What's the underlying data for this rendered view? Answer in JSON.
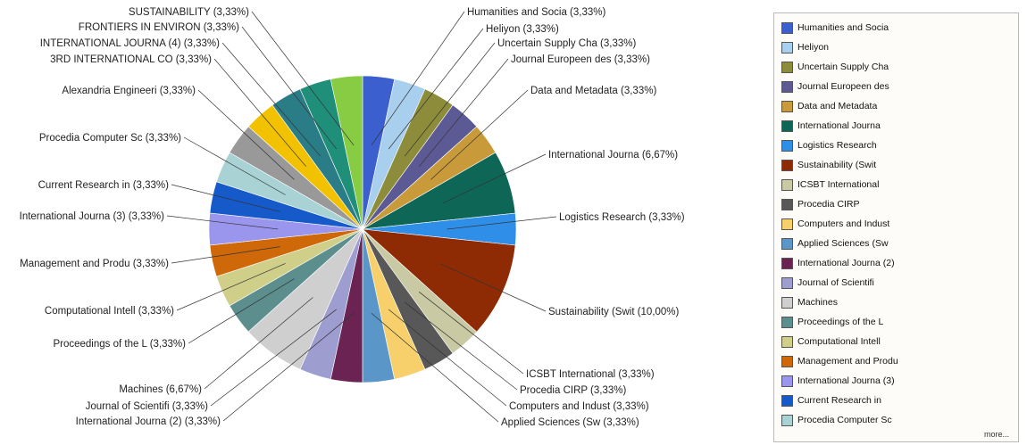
{
  "chart_data": {
    "type": "pie",
    "slices": [
      {
        "name": "Humanities and Socia",
        "value": 3.33,
        "label": "Humanities and Socia (3,33%)",
        "color": "#3b5fcf"
      },
      {
        "name": "Heliyon",
        "value": 3.33,
        "label": "Heliyon (3,33%)",
        "color": "#a9cfef"
      },
      {
        "name": "Uncertain Supply Cha",
        "value": 3.33,
        "label": "Uncertain Supply Cha (3,33%)",
        "color": "#8c8c3a"
      },
      {
        "name": "Journal Europeen des",
        "value": 3.33,
        "label": "Journal Europeen des (3,33%)",
        "color": "#5b5a95"
      },
      {
        "name": "Data and Metadata",
        "value": 3.33,
        "label": "Data and Metadata (3,33%)",
        "color": "#c89a3a"
      },
      {
        "name": "International Journa",
        "value": 6.67,
        "label": "International Journa (6,67%)",
        "color": "#0e6656"
      },
      {
        "name": "Logistics Research",
        "value": 3.33,
        "label": "Logistics Research (3,33%)",
        "color": "#2f8fe8"
      },
      {
        "name": "Sustainability (Swit",
        "value": 10.0,
        "label": "Sustainability (Swit (10,00%)",
        "color": "#8e2b05"
      },
      {
        "name": "ICSBT International",
        "value": 3.33,
        "label": "ICSBT International  (3,33%)",
        "color": "#c9c9a4"
      },
      {
        "name": "Procedia CIRP",
        "value": 3.33,
        "label": "Procedia CIRP (3,33%)",
        "color": "#585858"
      },
      {
        "name": "Computers and Indust",
        "value": 3.33,
        "label": "Computers and Indust (3,33%)",
        "color": "#f7cf6b"
      },
      {
        "name": "Applied Sciences (Sw",
        "value": 3.33,
        "label": "Applied Sciences (Sw (3,33%)",
        "color": "#5b96c8"
      },
      {
        "name": "International Journa (2)",
        "value": 3.33,
        "label": "International Journa (2) (3,33%)",
        "color": "#6a2352"
      },
      {
        "name": "Journal of Scientifi",
        "value": 3.33,
        "label": "Journal of Scientifi (3,33%)",
        "color": "#9d9dd0"
      },
      {
        "name": "Machines",
        "value": 6.67,
        "label": "Machines (6,67%)",
        "color": "#cfcfcf"
      },
      {
        "name": "Proceedings of the L",
        "value": 3.33,
        "label": "Proceedings of the L (3,33%)",
        "color": "#5d8e8e"
      },
      {
        "name": "Computational Intell",
        "value": 3.33,
        "label": "Computational Intell (3,33%)",
        "color": "#cfcf8a"
      },
      {
        "name": "Management and Produ",
        "value": 3.33,
        "label": "Management and Produ (3,33%)",
        "color": "#cf6808"
      },
      {
        "name": "International Journa (3)",
        "value": 3.33,
        "label": "International Journa (3) (3,33%)",
        "color": "#9a96ee"
      },
      {
        "name": "Current Research in",
        "value": 3.33,
        "label": "Current Research in  (3,33%)",
        "color": "#1659c9"
      },
      {
        "name": "Procedia Computer Sc",
        "value": 3.33,
        "label": "Procedia Computer Sc (3,33%)",
        "color": "#a8d2d4"
      },
      {
        "name": "Alexandria Engineeri",
        "value": 3.33,
        "label": "Alexandria Engineeri (3,33%)",
        "color": "#999999"
      },
      {
        "name": "3RD INTERNATIONAL CO",
        "value": 3.33,
        "label": "3RD INTERNATIONAL CO (3,33%)",
        "color": "#f2c200"
      },
      {
        "name": "INTERNATIONAL JOURNA (4)",
        "value": 3.33,
        "label": "INTERNATIONAL JOURNA (4) (3,33%)",
        "color": "#2a7d86"
      },
      {
        "name": "FRONTIERS IN ENVIRON",
        "value": 3.33,
        "label": "FRONTIERS IN ENVIRON (3,33%)",
        "color": "#1f8f7a"
      },
      {
        "name": "SUSTAINABILITY",
        "value": 3.33,
        "label": "SUSTAINABILITY (3,33%)",
        "color": "#88cc44"
      }
    ],
    "legend": {
      "placement": "right",
      "items": [
        {
          "label": "Humanities and Socia",
          "color": "#3b5fcf"
        },
        {
          "label": "Heliyon",
          "color": "#a9cfef"
        },
        {
          "label": "Uncertain Supply Cha",
          "color": "#8c8c3a"
        },
        {
          "label": "Journal Europeen des",
          "color": "#5b5a95"
        },
        {
          "label": "Data and Metadata",
          "color": "#c89a3a"
        },
        {
          "label": "International Journa",
          "color": "#0e6656"
        },
        {
          "label": "Logistics Research",
          "color": "#2f8fe8"
        },
        {
          "label": "Sustainability (Swit",
          "color": "#8e2b05"
        },
        {
          "label": "ICSBT International",
          "color": "#c9c9a4"
        },
        {
          "label": "Procedia CIRP",
          "color": "#585858"
        },
        {
          "label": "Computers and Indust",
          "color": "#f7cf6b"
        },
        {
          "label": "Applied Sciences (Sw",
          "color": "#5b96c8"
        },
        {
          "label": "International Journa (2)",
          "color": "#6a2352"
        },
        {
          "label": "Journal of Scientifi",
          "color": "#9d9dd0"
        },
        {
          "label": "Machines",
          "color": "#cfcfcf"
        },
        {
          "label": "Proceedings of the L",
          "color": "#5d8e8e"
        },
        {
          "label": "Computational Intell",
          "color": "#cfcf8a"
        },
        {
          "label": "Management and Produ",
          "color": "#cf6808"
        },
        {
          "label": "International Journa (3)",
          "color": "#9a96ee"
        },
        {
          "label": "Current Research in",
          "color": "#1659c9"
        },
        {
          "label": "Procedia Computer Sc",
          "color": "#a8d2d4"
        }
      ],
      "more_label": "more..."
    }
  }
}
